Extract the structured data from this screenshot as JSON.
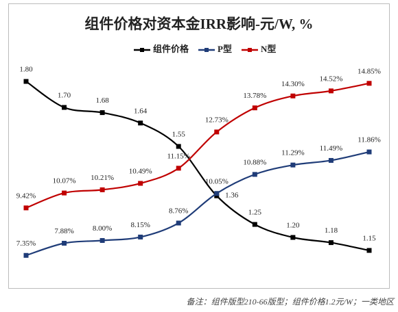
{
  "chart_data": {
    "type": "line",
    "title": "组件价格对资本金IRR影响-元/W, %",
    "categories": [
      null,
      null,
      null,
      null,
      null,
      null,
      null,
      null,
      null,
      null
    ],
    "series": [
      {
        "name": "组件价格",
        "color": "#000000",
        "axis": "y2",
        "values": [
          1.8,
          1.7,
          1.68,
          1.64,
          1.55,
          1.36,
          1.25,
          1.2,
          1.18,
          1.15
        ],
        "value_labels": [
          "1.80",
          "1.70",
          "1.68",
          "1.64",
          "1.55",
          "1.36",
          "1.25",
          "1.20",
          "1.18",
          "1.15"
        ]
      },
      {
        "name": "P型",
        "color": "#1f3c78",
        "values": [
          7.35,
          7.88,
          8.0,
          8.15,
          8.76,
          10.05,
          10.88,
          11.29,
          11.49,
          11.86
        ],
        "value_labels": [
          "7.35%",
          "7.88%",
          "8.00%",
          "8.15%",
          "8.76%",
          "10.05%",
          "10.88%",
          "11.29%",
          "11.49%",
          "11.86%"
        ]
      },
      {
        "name": "N型",
        "color": "#c00000",
        "values": [
          9.42,
          10.07,
          10.21,
          10.49,
          11.15,
          12.73,
          13.78,
          14.3,
          14.52,
          14.85
        ],
        "value_labels": [
          "9.42%",
          "10.07%",
          "10.21%",
          "10.49%",
          "11.15%",
          "12.73%",
          "13.78%",
          "14.30%",
          "14.52%",
          "14.85%"
        ]
      }
    ],
    "ylim": [
      7,
      15.5
    ],
    "y2lim": [
      1.1,
      1.85
    ],
    "legend": "top",
    "note": "备注：组件版型210-66版型；组件价格1.2元/W；一类地区"
  }
}
